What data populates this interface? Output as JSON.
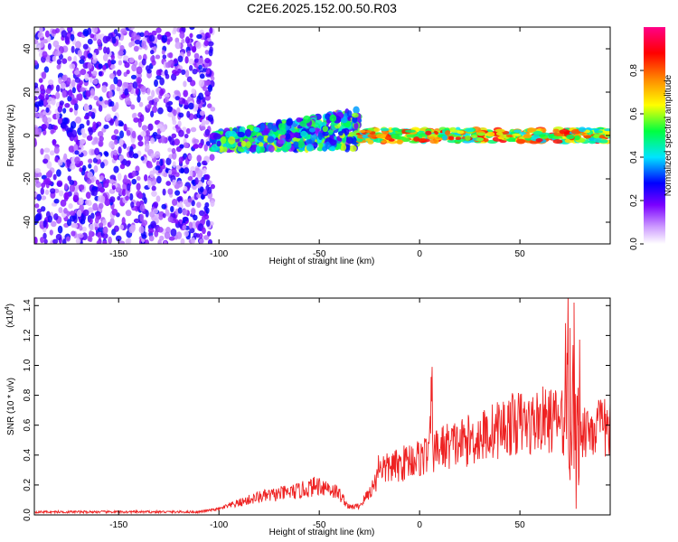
{
  "title": "C2E6.2025.152.00.50.R03",
  "chart_data": [
    {
      "type": "heatmap",
      "xlabel": "Height of straight line (km)",
      "ylabel": "Frequency (Hz)",
      "xlim": [
        -192,
        95
      ],
      "ylim": [
        -50,
        50
      ],
      "xticks": [
        -150,
        -100,
        -50,
        0,
        50
      ],
      "yticks": [
        -40,
        -20,
        0,
        20,
        40
      ],
      "colorbar": {
        "label": "Normalized spectral amplitude",
        "range": [
          0.0,
          1.0
        ],
        "ticks": [
          0.0,
          0.2,
          0.4,
          0.6,
          0.8
        ],
        "colors": [
          "#ffffff",
          "#cc99ff",
          "#7a00ff",
          "#0000ff",
          "#00e5ff",
          "#00ff40",
          "#ffff00",
          "#ff8800",
          "#ff0000",
          "#ff0088"
        ]
      },
      "regions": [
        {
          "x_range": [
            -192,
            -103
          ],
          "y_range": [
            -50,
            50
          ],
          "amplitude": 0.18,
          "pattern": "dense scattered noise"
        },
        {
          "x_range": [
            -103,
            -30
          ],
          "y_range": [
            -15,
            15
          ],
          "amplitude": 0.3,
          "pattern": "band centered near 0 Hz with upward drift"
        },
        {
          "x_range": [
            -30,
            95
          ],
          "y_range": [
            -3,
            3
          ],
          "amplitude": 0.7,
          "pattern": "narrow line at about 0 Hz"
        }
      ]
    },
    {
      "type": "line",
      "xlabel": "Height of straight line (km)",
      "ylabel": "SNR (10 * v/v)",
      "yscale_label": "(x10",
      "yscale_exp": "4",
      "xlim": [
        -192,
        95
      ],
      "ylim": [
        0,
        1.45
      ],
      "xticks": [
        -150,
        -100,
        -50,
        0,
        50
      ],
      "yticks": [
        0.0,
        0.2,
        0.4,
        0.6,
        0.8,
        1.0,
        1.2,
        1.4
      ],
      "series": [
        {
          "color": "#ee2222",
          "x": [
            -192,
            -150,
            -110,
            -100,
            -90,
            -80,
            -70,
            -60,
            -50,
            -45,
            -40,
            -35,
            -30,
            -25,
            -22,
            -20,
            -17,
            -15,
            -10,
            -5,
            0,
            5,
            6,
            7,
            10,
            20,
            30,
            40,
            50,
            55,
            60,
            65,
            70,
            72,
            75,
            76,
            77,
            78,
            79,
            80,
            85,
            90,
            95
          ],
          "values": [
            0.02,
            0.02,
            0.02,
            0.04,
            0.08,
            0.12,
            0.14,
            0.16,
            0.2,
            0.18,
            0.14,
            0.05,
            0.06,
            0.15,
            0.22,
            0.35,
            0.3,
            0.32,
            0.33,
            0.37,
            0.38,
            0.42,
            0.85,
            0.42,
            0.45,
            0.48,
            0.52,
            0.58,
            0.62,
            0.6,
            0.64,
            0.63,
            0.64,
            0.6,
            1.25,
            0.3,
            1.42,
            0.1,
            0.85,
            0.58,
            0.58,
            0.58,
            0.58
          ]
        }
      ]
    }
  ]
}
